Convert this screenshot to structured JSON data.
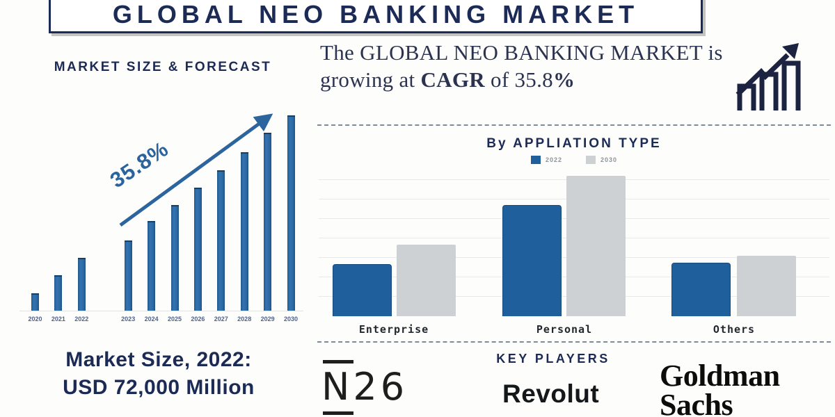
{
  "banner": {
    "title": "GLOBAL NEO BANKING MARKET"
  },
  "left_panel": {
    "heading": "MARKET SIZE & FORECAST",
    "growth_annotation": "35.8%",
    "market_size_line1": "Market Size, 2022:",
    "market_size_line2": "USD 72,000  Million"
  },
  "right_panel": {
    "intro": {
      "t1": "The GLOBAL NEO BANKING MARKET is growing at ",
      "b1": "CAGR",
      "t2": " of 35.8",
      "b2": "%"
    },
    "app_chart_heading": "By APPLIATION TYPE",
    "key_players_heading": "KEY PLAYERS",
    "players": {
      "n26": "N26",
      "revolut": "Revolut",
      "goldman_line1": "Goldman",
      "goldman_line2": "Sachs"
    }
  },
  "colors": {
    "navy": "#1c2a56",
    "bar_blue_left": "#2e6ba6",
    "bar_blue_right": "#1f5f9c",
    "bar_gray": "#ced1d4",
    "arrow_blue": "#2c649e"
  },
  "chart_data": [
    {
      "type": "bar",
      "title": "MARKET SIZE & FORECAST",
      "categories": [
        "2020",
        "2021",
        "2022",
        "2023",
        "2024",
        "2025",
        "2026",
        "2027",
        "2028",
        "2029",
        "2030"
      ],
      "values": [
        9,
        18,
        27,
        36,
        46,
        54,
        63,
        72,
        81,
        91,
        100
      ],
      "ylim": [
        0,
        100
      ],
      "grid": false,
      "xlabel": "",
      "ylabel": "",
      "annotation": "35.8%",
      "annotation_meaning": "CAGR growth arrow over forecast bars",
      "value_scale": "relative height, 2030 = 100 (no y-axis shown; 2022 = USD 72,000 Million)",
      "bar_color": "#2e6ba6",
      "gap_after_category": "2022"
    },
    {
      "type": "bar",
      "title": "By APPLIATION TYPE",
      "categories": [
        "Enterprise",
        "Personal",
        "Others"
      ],
      "series": [
        {
          "name": "2022",
          "color": "#1f5f9c",
          "values": [
            37,
            79,
            38
          ]
        },
        {
          "name": "2030",
          "color": "#ced1d4",
          "values": [
            51,
            100,
            43
          ]
        }
      ],
      "ylim": [
        0,
        100
      ],
      "grid": true,
      "legend_position": "top",
      "value_scale": "relative height, Personal 2030 = 100 (no y-axis shown)"
    }
  ]
}
